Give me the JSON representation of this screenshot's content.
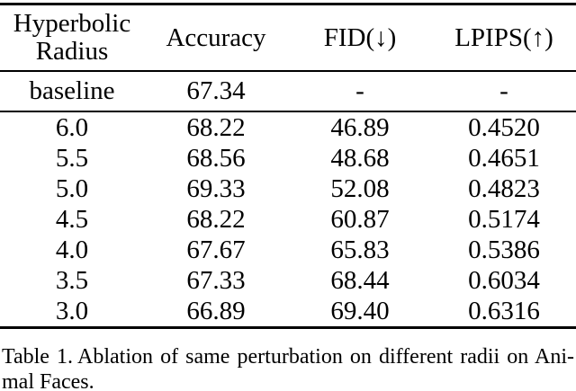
{
  "page": {
    "background_color": "#ffffff",
    "text_color": "#000000"
  },
  "table": {
    "header": {
      "col1_line1": "Hyperbolic",
      "col1_line2": "Radius",
      "col2": "Accuracy",
      "col3": "FID(↓)",
      "col4": "LPIPS(↑)"
    },
    "baseline_row": {
      "radius": "baseline",
      "accuracy": "67.34",
      "fid": "-",
      "lpips": "-"
    },
    "rows": [
      {
        "radius": "6.0",
        "accuracy": "68.22",
        "fid": "46.89",
        "lpips": "0.4520"
      },
      {
        "radius": "5.5",
        "accuracy": "68.56",
        "fid": "48.68",
        "lpips": "0.4651"
      },
      {
        "radius": "5.0",
        "accuracy": "69.33",
        "fid": "52.08",
        "lpips": "0.4823"
      },
      {
        "radius": "4.5",
        "accuracy": "68.22",
        "fid": "60.87",
        "lpips": "0.5174"
      },
      {
        "radius": "4.0",
        "accuracy": "67.67",
        "fid": "65.83",
        "lpips": "0.5386"
      },
      {
        "radius": "3.5",
        "accuracy": "67.33",
        "fid": "68.44",
        "lpips": "0.6034"
      },
      {
        "radius": "3.0",
        "accuracy": "66.89",
        "fid": "69.40",
        "lpips": "0.6316"
      }
    ],
    "bold_values": [
      "46.89",
      "69.33",
      "0.6316"
    ]
  },
  "caption": {
    "label": "Table 1.",
    "line1_rest": "Ablation of same perturbation on different radii on Ani-",
    "line2": "mal Faces."
  }
}
